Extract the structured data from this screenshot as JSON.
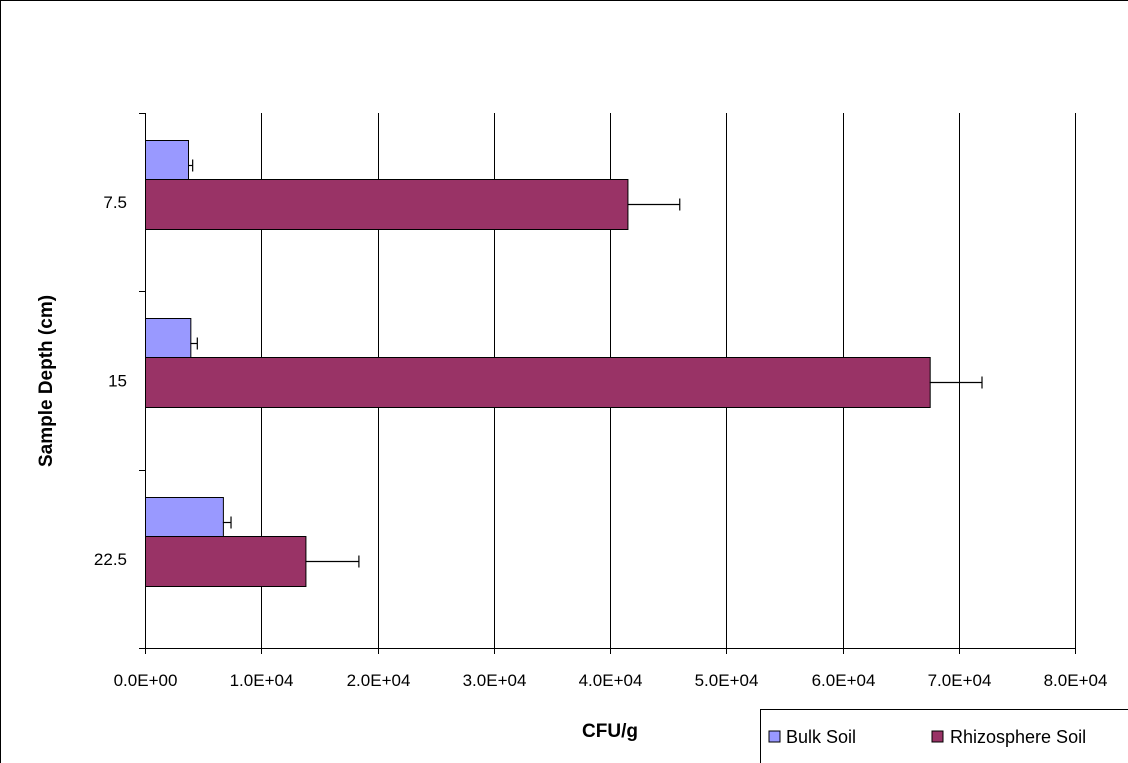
{
  "chart_data": {
    "type": "bar",
    "orientation": "horizontal",
    "categories": [
      "7.5",
      "15",
      "22.5"
    ],
    "series": [
      {
        "name": "Bulk Soil",
        "color": "#9999ff",
        "values": [
          3700,
          3900,
          6700
        ],
        "errors": [
          400,
          600,
          700
        ]
      },
      {
        "name": "Rhizosphere Soil",
        "color": "#993366",
        "values": [
          41500,
          67500,
          13800
        ],
        "errors": [
          4500,
          4500,
          4600
        ]
      }
    ],
    "xlabel": "CFU/g",
    "ylabel": "Sample Depth (cm)",
    "xlim": [
      0,
      80000
    ],
    "xticks": [
      "0.0E+00",
      "1.0E+04",
      "2.0E+04",
      "3.0E+04",
      "4.0E+04",
      "5.0E+04",
      "6.0E+04",
      "7.0E+04",
      "8.0E+04"
    ],
    "grid": "vertical major gridlines",
    "legend_position": "bottom-right"
  }
}
